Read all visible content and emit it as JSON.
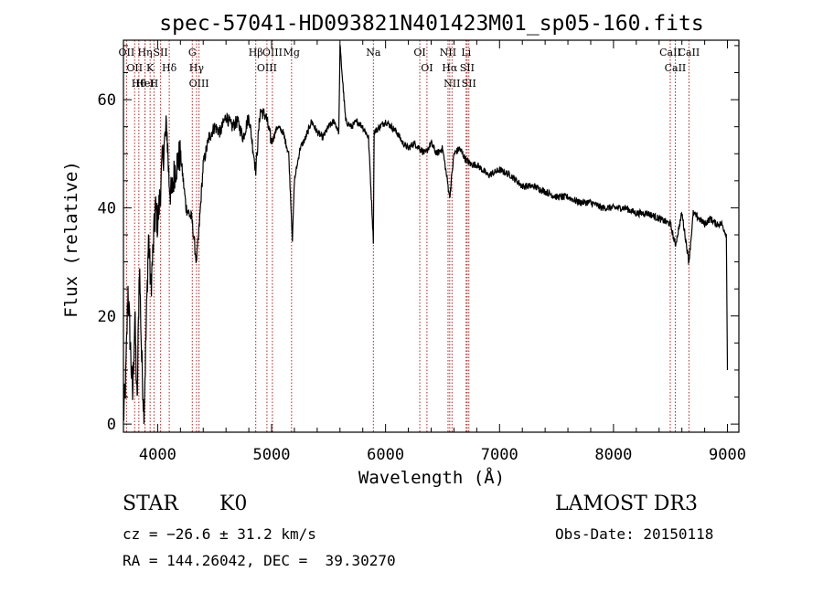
{
  "chart_data": {
    "type": "line",
    "title": "spec-57041-HD093821N401423M01_sp05-160.fits",
    "xlabel": "Wavelength (Å)",
    "ylabel": "Flux (relative)",
    "xlim": [
      3700,
      9100
    ],
    "ylim": [
      -1.5,
      71
    ],
    "xticks": [
      4000,
      5000,
      6000,
      7000,
      8000,
      9000
    ],
    "yticks": [
      0,
      20,
      40,
      60
    ],
    "line_color": "#000000",
    "marker_color": "#b22222",
    "series": [
      {
        "name": "flux",
        "x": [
          3700,
          3720,
          3740,
          3760,
          3780,
          3800,
          3820,
          3840,
          3860,
          3880,
          3900,
          3920,
          3940,
          3960,
          3980,
          4000,
          4020,
          4040,
          4060,
          4080,
          4100,
          4120,
          4150,
          4200,
          4250,
          4300,
          4340,
          4360,
          4400,
          4450,
          4500,
          4550,
          4600,
          4650,
          4700,
          4750,
          4800,
          4861,
          4900,
          4950,
          5000,
          5050,
          5100,
          5150,
          5183,
          5200,
          5250,
          5300,
          5350,
          5400,
          5450,
          5500,
          5550,
          5590,
          5600,
          5650,
          5700,
          5750,
          5800,
          5850,
          5893,
          5900,
          5950,
          6000,
          6050,
          6100,
          6150,
          6200,
          6250,
          6300,
          6350,
          6400,
          6450,
          6500,
          6563,
          6600,
          6650,
          6700,
          6750,
          6800,
          6900,
          7000,
          7100,
          7200,
          7300,
          7400,
          7500,
          7600,
          7700,
          7800,
          7900,
          8000,
          8100,
          8200,
          8300,
          8400,
          8500,
          8542,
          8600,
          8662,
          8700,
          8750,
          8800,
          8850,
          8900,
          8950,
          8990,
          9000
        ],
        "y": [
          1,
          8,
          25,
          15,
          5,
          20,
          3,
          30,
          12,
          2,
          18,
          35,
          25,
          32,
          40,
          37,
          42,
          48,
          52,
          55,
          45,
          42,
          47,
          50,
          40,
          38,
          30,
          35,
          48,
          53,
          55,
          54,
          57,
          55,
          56,
          53,
          57,
          47,
          58,
          57,
          52,
          55,
          54,
          50,
          34,
          45,
          51,
          53,
          56,
          54,
          53,
          55,
          56,
          54,
          70,
          56,
          55,
          56,
          55,
          53,
          34,
          54,
          55,
          56,
          55,
          54,
          52,
          51,
          52,
          51,
          50,
          52,
          50,
          51,
          42,
          50,
          51,
          49,
          48,
          48,
          46,
          47,
          46,
          44,
          44,
          43,
          42,
          42,
          41,
          41,
          40,
          40,
          40,
          39,
          39,
          38,
          37,
          33,
          39,
          30,
          39,
          38,
          37,
          38,
          37,
          37,
          35,
          10
        ]
      }
    ],
    "line_markers": [
      {
        "wavelength": 3727,
        "label": "OII"
      },
      {
        "wavelength": 3798,
        "label": "OII"
      },
      {
        "wavelength": 3835,
        "label": "Hθ"
      },
      {
        "wavelength": 3889,
        "label": "Hη"
      },
      {
        "wavelength": 3889,
        "label": "HeI"
      },
      {
        "wavelength": 3934,
        "label": "K"
      },
      {
        "wavelength": 3968,
        "label": "H"
      },
      {
        "wavelength": 4026,
        "label": "SII"
      },
      {
        "wavelength": 4102,
        "label": "Hδ"
      },
      {
        "wavelength": 4304,
        "label": "G"
      },
      {
        "wavelength": 4341,
        "label": "Hγ"
      },
      {
        "wavelength": 4363,
        "label": "OIII"
      },
      {
        "wavelength": 4861,
        "label": "Hβ"
      },
      {
        "wavelength": 4959,
        "label": "OIII"
      },
      {
        "wavelength": 5007,
        "label": "OIII"
      },
      {
        "wavelength": 5175,
        "label": "Mg"
      },
      {
        "wavelength": 5893,
        "label": "Na"
      },
      {
        "wavelength": 6300,
        "label": "OI"
      },
      {
        "wavelength": 6363,
        "label": "OI"
      },
      {
        "wavelength": 6548,
        "label": "NII"
      },
      {
        "wavelength": 6563,
        "label": "Hα"
      },
      {
        "wavelength": 6583,
        "label": "NII"
      },
      {
        "wavelength": 6707,
        "label": "Li"
      },
      {
        "wavelength": 6716,
        "label": "SII"
      },
      {
        "wavelength": 6731,
        "label": "SII"
      },
      {
        "wavelength": 8498,
        "label": "CaII"
      },
      {
        "wavelength": 8542,
        "label": "CaII"
      },
      {
        "wavelength": 8662,
        "label": "CaII"
      }
    ]
  },
  "info": {
    "class": "STAR",
    "subclass": "K0",
    "survey": "LAMOST DR3",
    "cz": "cz = −26.6 ± 31.2 km/s",
    "obs_date": "Obs-Date: 20150118",
    "radec": "RA = 144.26042, DEC =  39.30270"
  }
}
